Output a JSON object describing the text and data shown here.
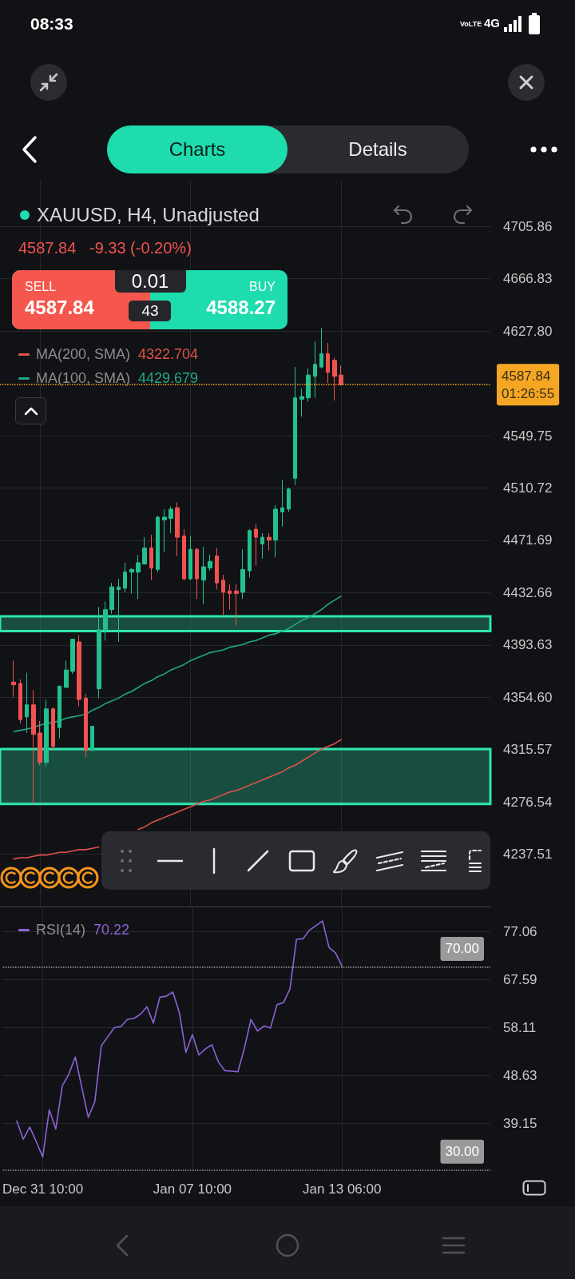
{
  "chart_data": [
    {
      "type": "candlestick",
      "title": "XAUUSD, H4, Unadjusted",
      "subtitle": "4587.84   -9.33 (-0.20%)",
      "categories": [
        null,
        null,
        null,
        null,
        null,
        null,
        null,
        null,
        null,
        null,
        null,
        null,
        null,
        null,
        null,
        null,
        null,
        null,
        null,
        null,
        null,
        null,
        null,
        null,
        null,
        null,
        null,
        null,
        null,
        null,
        null,
        null,
        null,
        null,
        null,
        null,
        null,
        null,
        null,
        null,
        null,
        null,
        null,
        null,
        null,
        null,
        null,
        null,
        null,
        null,
        null
      ],
      "ohlc": [
        [
          4366,
          4382,
          4355,
          4364
        ],
        [
          4365,
          4368,
          4335,
          4338
        ],
        [
          4340,
          4373,
          4328,
          4349
        ],
        [
          4349,
          4360,
          4275,
          4327
        ],
        [
          4328,
          4337,
          4304,
          4306
        ],
        [
          4306,
          4353,
          4303,
          4346
        ],
        [
          4346,
          4347,
          4315,
          4318
        ],
        [
          4332,
          4363,
          4324,
          4363
        ],
        [
          4362,
          4382,
          4362,
          4375
        ],
        [
          4374,
          4398,
          4372,
          4398
        ],
        [
          4396,
          4401,
          4348,
          4353
        ],
        [
          4354,
          4357,
          4310,
          4315
        ],
        [
          4315,
          4333,
          4315,
          4333
        ],
        [
          4361,
          4422,
          4354,
          4405
        ],
        [
          4405,
          4426,
          4397,
          4420
        ],
        [
          4420,
          4440,
          4417,
          4437
        ],
        [
          4435,
          4443,
          4396,
          4437
        ],
        [
          4436,
          4455,
          4433,
          4448
        ],
        [
          4448,
          4451,
          4432,
          4450
        ],
        [
          4448,
          4461,
          4428,
          4455
        ],
        [
          4454,
          4474,
          4454,
          4466
        ],
        [
          4466,
          4476,
          4442,
          4451
        ],
        [
          4450,
          4490,
          4448,
          4489
        ],
        [
          4487,
          4495,
          4463,
          4489
        ],
        [
          4488,
          4497,
          4477,
          4495
        ],
        [
          4496,
          4500,
          4460,
          4474
        ],
        [
          4475,
          4480,
          4442,
          4443
        ],
        [
          4443,
          4475,
          4442,
          4465
        ],
        [
          4465,
          4466,
          4428,
          4443
        ],
        [
          4442,
          4467,
          4424,
          4452
        ],
        [
          4451,
          4461,
          4449,
          4456
        ],
        [
          4460,
          4466,
          4435,
          4440
        ],
        [
          4442,
          4446,
          4416,
          4433
        ],
        [
          4434,
          4439,
          4420,
          4432
        ],
        [
          4434,
          4439,
          4408,
          4432
        ],
        [
          4433,
          4465,
          4428,
          4450
        ],
        [
          4449,
          4480,
          4444,
          4479
        ],
        [
          4480,
          4484,
          4453,
          4474
        ],
        [
          4469,
          4477,
          4458,
          4474
        ],
        [
          4474,
          4477,
          4464,
          4472
        ],
        [
          4472,
          4498,
          4459,
          4495
        ],
        [
          4493,
          4517,
          4482,
          4496
        ],
        [
          4495,
          4511,
          4493,
          4510
        ],
        [
          4518,
          4601,
          4513,
          4578
        ],
        [
          4577,
          4585,
          4564,
          4579
        ],
        [
          4578,
          4600,
          4575,
          4595
        ],
        [
          4594,
          4620,
          4578,
          4603
        ],
        [
          4601,
          4630,
          4600,
          4611
        ],
        [
          4611,
          4619,
          4589,
          4597
        ],
        [
          4606,
          4608,
          4576,
          4594
        ],
        [
          4595,
          4602,
          4587.84,
          4587.84
        ]
      ],
      "colors": [
        "#f0524f",
        "#f0524f",
        "#22c08e",
        "#f0524f",
        "#f0524f",
        "#22c08e",
        "#f0524f",
        "#22c08e",
        "#22c08e",
        "#22c08e",
        "#f0524f",
        "#f0524f",
        "#22c08e",
        "#22c08e",
        "#22c08e",
        "#22c08e",
        "#22c08e",
        "#22c08e",
        "#22c08e",
        "#22c08e",
        "#22c08e",
        "#f0524f",
        "#22c08e",
        "#22c08e",
        "#22c08e",
        "#f0524f",
        "#f0524f",
        "#22c08e",
        "#f0524f",
        "#22c08e",
        "#22c08e",
        "#f0524f",
        "#f0524f",
        "#f0524f",
        "#f0524f",
        "#22c08e",
        "#22c08e",
        "#f0524f",
        "#22c08e",
        "#f0524f",
        "#22c08e",
        "#22c08e",
        "#22c08e",
        "#22c08e",
        "#22c08e",
        "#22c08e",
        "#22c08e",
        "#22c08e",
        "#f0524f",
        "#f0524f",
        "#f0524f"
      ],
      "series": [
        {
          "name": "MA(200, SMA)",
          "type": "line",
          "color": "#e0524a",
          "values": [
            4234,
            4235,
            4235,
            4236,
            4237,
            4237,
            4238,
            4239,
            4239,
            4240,
            4241,
            4241,
            4242,
            4243,
            null,
            null,
            null,
            null,
            null,
            4256,
            4258,
            4261,
            4263,
            4265,
            4267,
            4269,
            4271,
            4273,
            4275,
            4277,
            4278,
            4280,
            4282,
            4284,
            4285,
            4287,
            4289,
            4291,
            4293,
            4295,
            4297,
            4299,
            4302,
            4304,
            4307,
            4310,
            4313,
            4316,
            4318,
            4320,
            4323
          ]
        },
        {
          "name": "MA(100, SMA)",
          "type": "line",
          "color": "#1fa88a",
          "values": [
            4329,
            4330,
            4331,
            4332,
            4334,
            4335,
            4336,
            4337,
            4339,
            4340,
            4341,
            4342,
            4345,
            4347,
            4350,
            4352,
            4354,
            4357,
            4359,
            4362,
            4365,
            4367,
            4370,
            4372,
            4375,
            4377,
            4379,
            4382,
            4384,
            4386,
            4388,
            4389,
            4390,
            4392,
            4393,
            4394,
            4396,
            4397,
            4399,
            4401,
            4402,
            4404,
            4406,
            4409,
            4412,
            4414,
            4417,
            4420,
            4424,
            4427,
            4430
          ]
        }
      ],
      "ylim": [
        4198,
        4740
      ],
      "yticks": [
        4237.51,
        4276.54,
        4315.57,
        {
          "value": 4354.6,
          "label": "4354.60"
        },
        4393.63,
        4432.66,
        4471.69,
        4510.72,
        4549.75,
        {
          "value": 4627.8,
          "label": "4627.80"
        },
        4666.83,
        4705.86
      ],
      "ref_lines": [
        {
          "axis": "y",
          "value": 4587.84,
          "label": "4587.84\n01:26:55",
          "color": "#f5a623",
          "line_style": "dotted"
        }
      ],
      "bands": [
        {
          "axis": "y",
          "from": 4404,
          "to": 4415,
          "color": "#2ee6b0"
        },
        {
          "axis": "y",
          "from": 4275,
          "to": 4316,
          "color": "#2ee6b0"
        }
      ],
      "grid": true,
      "legend": "top left",
      "annotations": [
        "4322.704",
        "4429.679",
        "08:33",
        "VoLTE",
        "4G",
        "Charts",
        "Details",
        "SELL",
        "4587.84",
        "0.01",
        "43",
        "BUY",
        "4588.27"
      ]
    },
    {
      "type": "line",
      "categories": [
        null,
        null,
        null,
        null,
        "Dec 31 10:00",
        null,
        null,
        null,
        null,
        null,
        null,
        null,
        null,
        null,
        null,
        null,
        null,
        null,
        null,
        null,
        null,
        null,
        null,
        null,
        null,
        null,
        null,
        "Jan 07 10:00",
        null,
        null,
        null,
        null,
        null,
        null,
        null,
        null,
        null,
        null,
        null,
        null,
        null,
        null,
        null,
        null,
        null,
        null,
        null,
        null,
        null,
        null,
        "Jan 13 06:00"
      ],
      "series": [
        {
          "name": "RSI(14)",
          "color": "#8e63d8",
          "values": [
            39.7,
            36.1,
            38.5,
            35.6,
            32.6,
            41.9,
            38.1,
            46.6,
            48.9,
            52.3,
            46.3,
            40.4,
            43.5,
            54.5,
            56.3,
            58.1,
            58.3,
            59.7,
            59.9,
            60.7,
            62.2,
            59.0,
            64.1,
            64.3,
            65.1,
            61.0,
            53.2,
            56.7,
            52.7,
            53.9,
            54.7,
            51.3,
            49.6,
            49.5,
            49.4,
            54.1,
            59.7,
            57.4,
            58.4,
            58.0,
            62.6,
            63.0,
            65.7,
            75.5,
            75.6,
            77.3,
            78.2,
            79.1,
            73.9,
            72.8,
            70.2
          ]
        }
      ],
      "ylim": [
        29.5,
        81.8
      ],
      "yticks": [
        77.06,
        67.59,
        58.11,
        48.63,
        39.15
      ],
      "ref_lines": [
        {
          "axis": "y",
          "value": 70,
          "label": "70.00",
          "color": "#9a9a9a",
          "line_style": "dotted"
        },
        {
          "axis": "y",
          "value": 30,
          "label": "30.00",
          "color": "#9a9a9a",
          "line_style": "dotted"
        }
      ],
      "grid": true,
      "legend": "top left",
      "annotations": [
        "70.22"
      ]
    }
  ]
}
